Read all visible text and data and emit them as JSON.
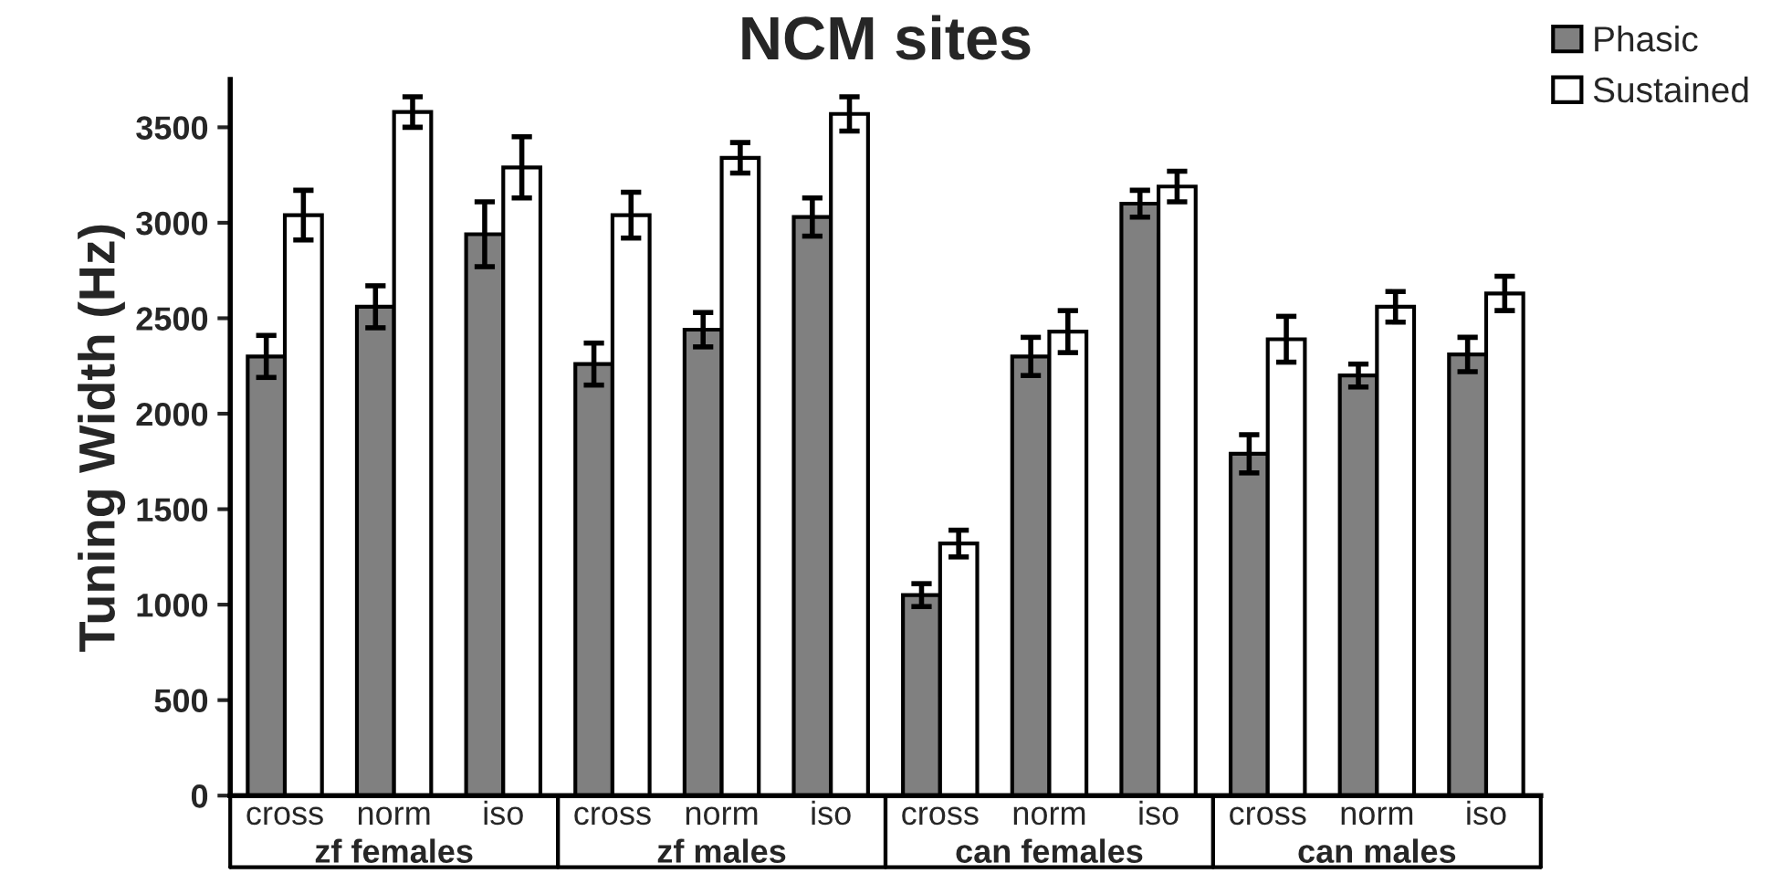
{
  "chart_data": {
    "type": "bar",
    "title": "NCM sites",
    "ylabel": "Tuning Width (Hz)",
    "categories": [
      "cross",
      "norm",
      "iso",
      "cross",
      "norm",
      "iso",
      "cross",
      "norm",
      "iso",
      "cross",
      "norm",
      "iso"
    ],
    "annotations": [
      "zf females",
      "zf males",
      "can females",
      "can males"
    ],
    "series": [
      {
        "name": "Phasic",
        "color": "#808080",
        "values": [
          2300,
          2560,
          2940,
          2260,
          2440,
          3030,
          1050,
          2300,
          3100,
          1790,
          2200,
          2310
        ],
        "errors": [
          110,
          110,
          170,
          110,
          90,
          100,
          60,
          100,
          70,
          100,
          60,
          90
        ]
      },
      {
        "name": "Sustained",
        "color": "#ffffff",
        "values": [
          3040,
          3580,
          3290,
          3040,
          3340,
          3570,
          1320,
          2430,
          3190,
          2390,
          2560,
          2630
        ],
        "errors": [
          130,
          80,
          160,
          120,
          80,
          90,
          70,
          110,
          80,
          120,
          80,
          90
        ]
      }
    ],
    "ylim": [
      0,
      3750
    ],
    "yticks": [
      0,
      500,
      1000,
      1500,
      2000,
      2500,
      3000,
      3500
    ],
    "grid": false,
    "legend": "top right"
  }
}
